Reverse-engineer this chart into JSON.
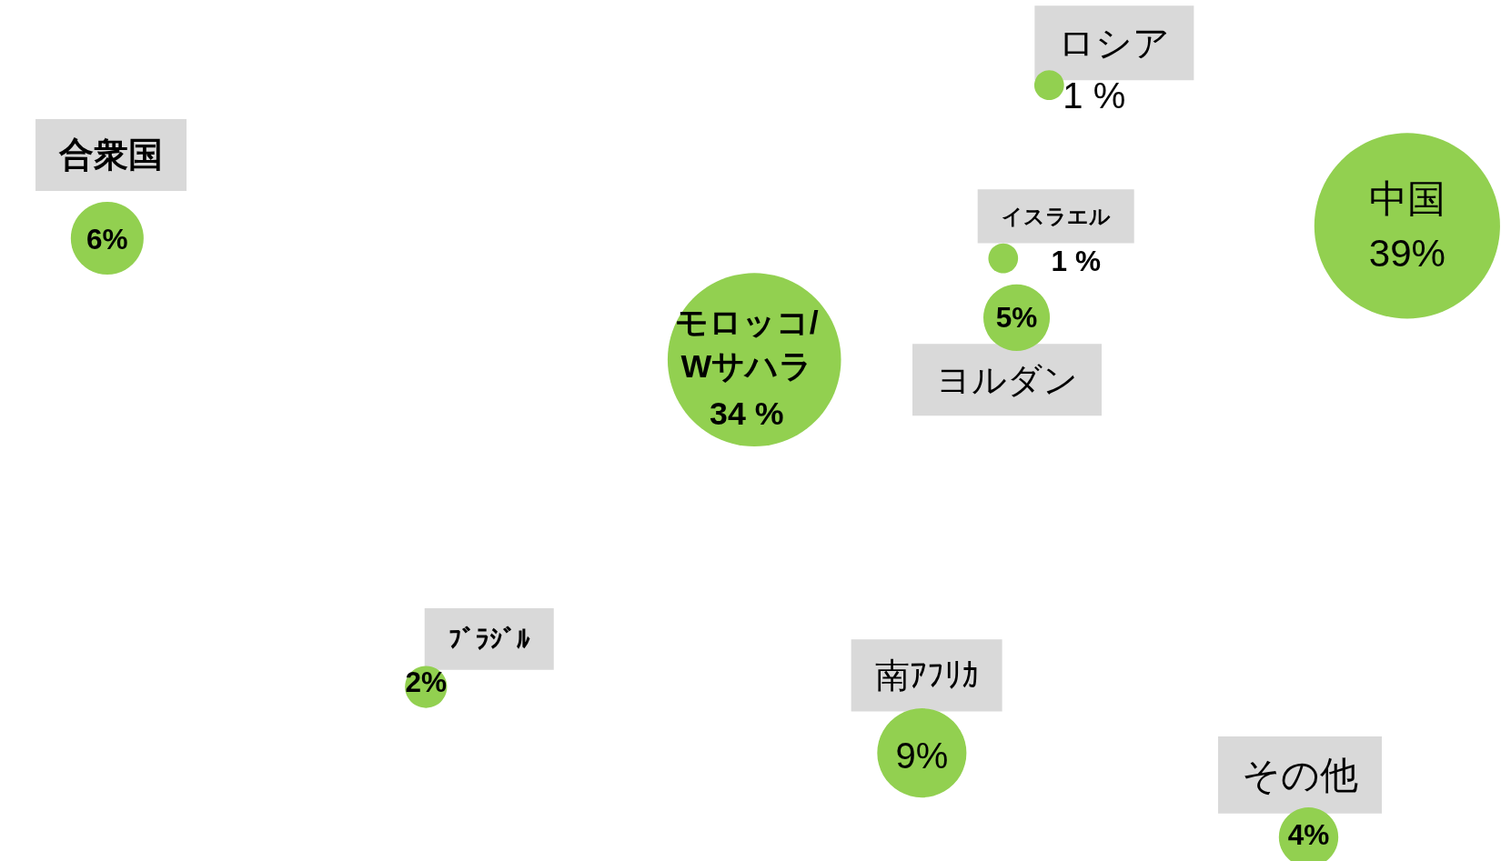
{
  "chart_data": {
    "type": "other",
    "categories": [
      "合衆国",
      "ロシア",
      "イスラエル",
      "中国",
      "モロッコ/\nWサハラ",
      "ヨルダン",
      "ﾌﾞﾗｼﾞﾙ",
      "南ｱﾌﾘｶ",
      "その他"
    ],
    "values": [
      6,
      1,
      1,
      39,
      34,
      5,
      2,
      9,
      4
    ],
    "value_labels": [
      "6%",
      "1 %",
      "1 %",
      "39%",
      "34 %",
      "5%",
      "2%",
      "9%",
      "4%"
    ],
    "color": "#92d050"
  }
}
